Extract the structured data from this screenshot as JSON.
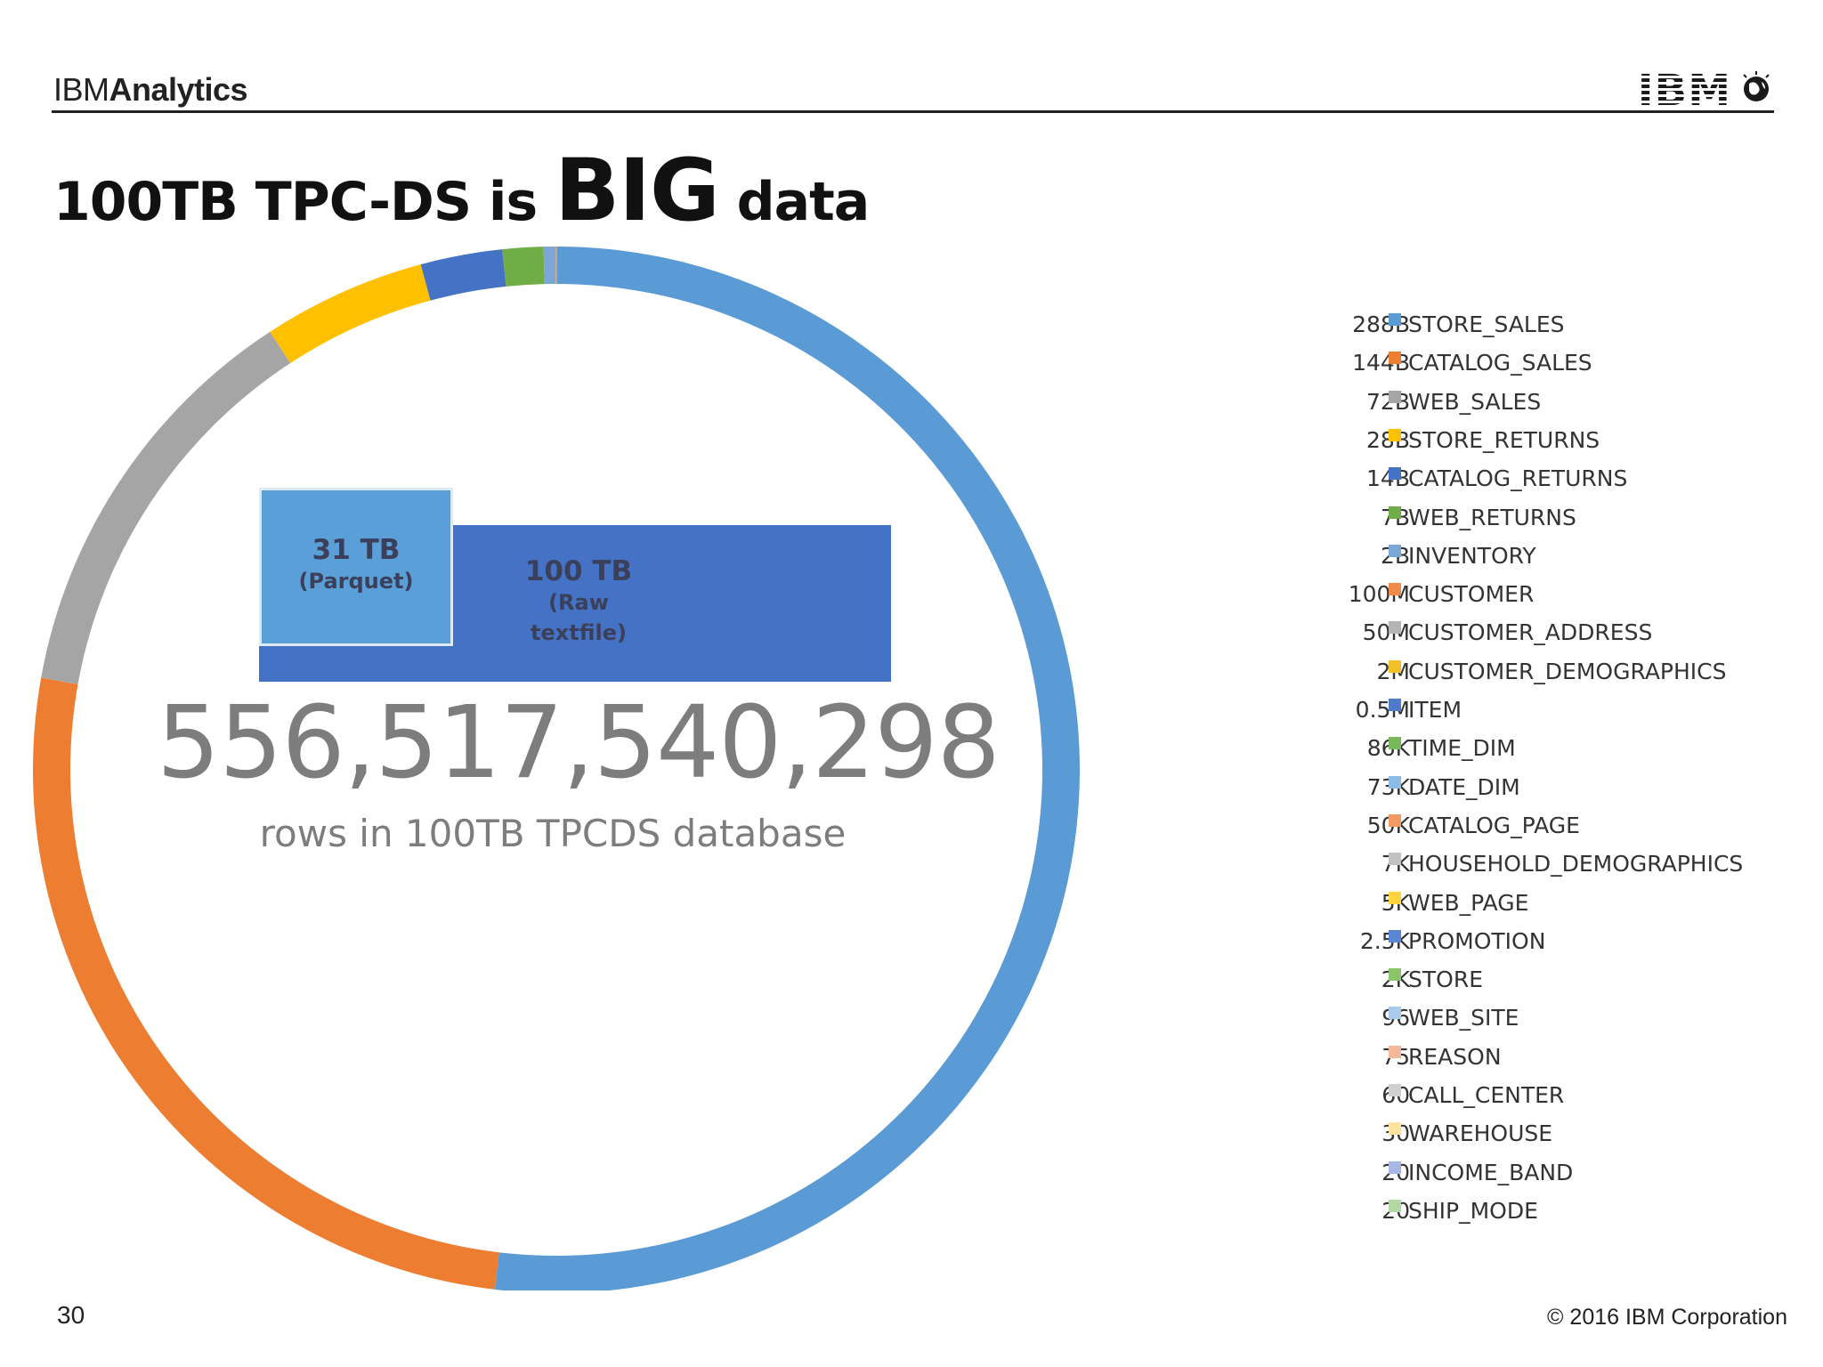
{
  "header": {
    "brand_prefix": "IBM",
    "brand_suffix": "Analytics",
    "logo_text": "IBM"
  },
  "slide": {
    "title_part1": "100TB TPC-DS is ",
    "title_big": "BIG",
    "title_part2": " data"
  },
  "storage": {
    "parquet_size": "31 TB",
    "parquet_label": "(Parquet)",
    "raw_size": "100 TB",
    "raw_label_line1": "(Raw",
    "raw_label_line2": "textfile)"
  },
  "summary": {
    "total_rows": "556,517,540,298",
    "caption": "rows in 100TB TPCDS database"
  },
  "footer": {
    "page_number": "30",
    "copyright": "© 2016 IBM Corporation"
  },
  "chart_data": {
    "type": "pie",
    "variant": "donut",
    "legend_position": "right",
    "slices": [
      {
        "name": "STORE_SALES",
        "label": "288B",
        "value": 288000000000,
        "color": "#5b9bd5"
      },
      {
        "name": "CATALOG_SALES",
        "label": "144B",
        "value": 144000000000,
        "color": "#ed7d31"
      },
      {
        "name": "WEB_SALES",
        "label": "72B",
        "value": 72000000000,
        "color": "#a5a5a5"
      },
      {
        "name": "STORE_RETURNS",
        "label": "28B",
        "value": 28000000000,
        "color": "#ffc000"
      },
      {
        "name": "CATALOG_RETURNS",
        "label": "14B",
        "value": 14000000000,
        "color": "#4472c4"
      },
      {
        "name": "WEB_RETURNS",
        "label": "7B",
        "value": 7000000000,
        "color": "#70ad47"
      },
      {
        "name": "INVENTORY",
        "label": "2B",
        "value": 2000000000,
        "color": "#7ba7d8"
      },
      {
        "name": "CUSTOMER",
        "label": "100M",
        "value": 100000000,
        "color": "#f08a4b"
      },
      {
        "name": "CUSTOMER_ADDRESS",
        "label": "50M",
        "value": 50000000,
        "color": "#b4b4b4"
      },
      {
        "name": "CUSTOMER_DEMOGRAPHICS",
        "label": "2M",
        "value": 2000000,
        "color": "#f2c028"
      },
      {
        "name": "ITEM",
        "label": "0.5M",
        "value": 500000,
        "color": "#4f79c9"
      },
      {
        "name": "TIME_DIM",
        "label": "86K",
        "value": 86000,
        "color": "#79b85a"
      },
      {
        "name": "DATE_DIM",
        "label": "73K",
        "value": 73000,
        "color": "#8dbce6"
      },
      {
        "name": "CATALOG_PAGE",
        "label": "50K",
        "value": 50000,
        "color": "#f39a64"
      },
      {
        "name": "HOUSEHOLD_DEMOGRAPHICS",
        "label": "7K",
        "value": 7000,
        "color": "#c2c2c2"
      },
      {
        "name": "WEB_PAGE",
        "label": "5K",
        "value": 5000,
        "color": "#ffd23f"
      },
      {
        "name": "PROMOTION",
        "label": "2.5K",
        "value": 2500,
        "color": "#5b86d6"
      },
      {
        "name": "STORE",
        "label": "2K",
        "value": 2000,
        "color": "#8cc46c"
      },
      {
        "name": "WEB_SITE",
        "label": "96",
        "value": 96,
        "color": "#aacbee"
      },
      {
        "name": "REASON",
        "label": "75",
        "value": 75,
        "color": "#f5b79a"
      },
      {
        "name": "CALL_CENTER",
        "label": "60",
        "value": 60,
        "color": "#cfcfcf"
      },
      {
        "name": "WAREHOUSE",
        "label": "30",
        "value": 30,
        "color": "#fde3a0"
      },
      {
        "name": "INCOME_BAND",
        "label": "20",
        "value": 20,
        "color": "#a7b7e3"
      },
      {
        "name": "SHIP_MODE",
        "label": "20",
        "value": 20,
        "color": "#b3d7a3"
      }
    ]
  }
}
